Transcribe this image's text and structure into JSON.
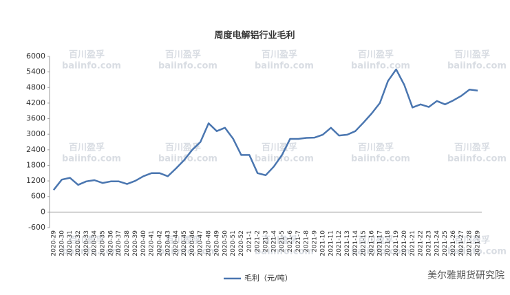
{
  "chart_data": {
    "type": "line",
    "title": "周度电解铝行业毛利",
    "categories": [
      "2020-29",
      "2020-30",
      "2020-31",
      "2020-32",
      "2020-33",
      "2020-34",
      "2020-35",
      "2020-36",
      "2020-37",
      "2020-38",
      "2020-39",
      "2020-40",
      "2020-41",
      "2020-42",
      "2020-43",
      "2020-44",
      "2020-45",
      "2020-46",
      "2020-47",
      "2020-48",
      "2020-49",
      "2020-50",
      "2020-51",
      "2020-52",
      "2021-1",
      "2021-2",
      "2021-3",
      "2021-4",
      "2021-5",
      "2021-6",
      "2021-7",
      "2021-8",
      "2021-9",
      "2021-10",
      "2021-11",
      "2021-12",
      "2021-13",
      "2021-14",
      "2021-15",
      "2021-16",
      "2021-17",
      "2021-18",
      "2021-19",
      "2021-20",
      "2021-21",
      "2021-22",
      "2021-23",
      "2021-24",
      "2021-25",
      "2021-26",
      "2021-27",
      "2021-28",
      "2021-29"
    ],
    "series": [
      {
        "name": "毛利（元/吨）",
        "color": "#4a76b0",
        "values": [
          850,
          1250,
          1320,
          1050,
          1180,
          1230,
          1120,
          1180,
          1180,
          1080,
          1200,
          1380,
          1500,
          1500,
          1380,
          1680,
          2000,
          2400,
          2700,
          3420,
          3120,
          3250,
          2830,
          2200,
          2200,
          1500,
          1420,
          1750,
          2200,
          2820,
          2820,
          2860,
          2870,
          2980,
          3250,
          2950,
          2980,
          3120,
          3450,
          3800,
          4200,
          5050,
          5500,
          4900,
          4030,
          4150,
          4050,
          4280,
          4150,
          4300,
          4480,
          4720,
          4680
        ]
      }
    ],
    "ylim": [
      -600,
      6000
    ],
    "yticks": [
      -600,
      0,
      600,
      1200,
      1800,
      2400,
      3000,
      3600,
      4200,
      4800,
      5400,
      6000
    ],
    "grid": false,
    "legend": "bottom",
    "watermark": [
      "百川盈孚",
      "baiinfo.com"
    ],
    "credit": "美尔雅期货研究院"
  }
}
